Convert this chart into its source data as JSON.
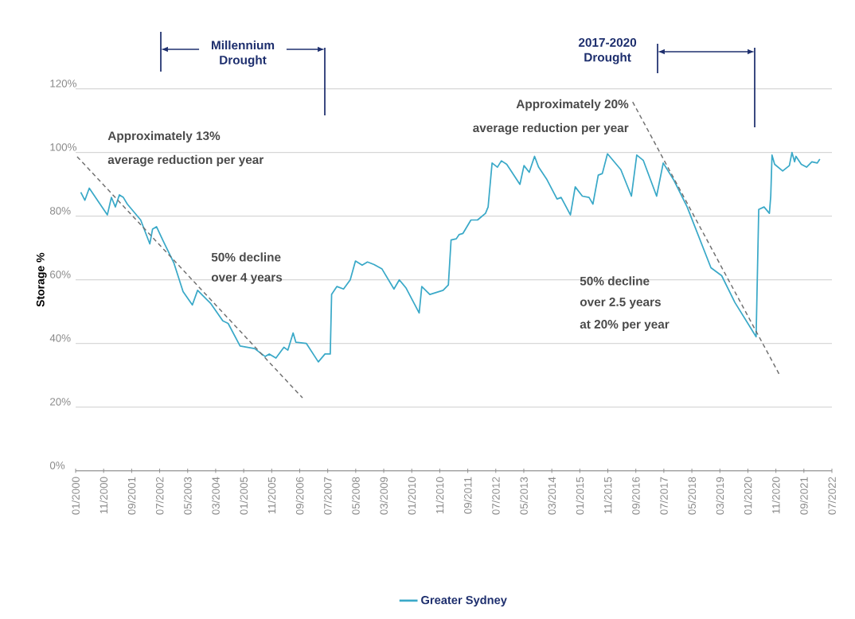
{
  "chart_data": {
    "type": "line",
    "ylabel": "Storage %",
    "xlim": [
      "2000-01",
      "2022-07"
    ],
    "xticks": [
      {
        "value": "2000-01",
        "label": "01/2000"
      },
      {
        "value": "2000-11",
        "label": "11/2000"
      },
      {
        "value": "2001-09",
        "label": "09/2001"
      },
      {
        "value": "2002-07",
        "label": "07/2002"
      },
      {
        "value": "2003-05",
        "label": "05/2003"
      },
      {
        "value": "2004-03",
        "label": "03/2004"
      },
      {
        "value": "2005-01",
        "label": "01/2005"
      },
      {
        "value": "2005-11",
        "label": "11/2005"
      },
      {
        "value": "2006-09",
        "label": "09/2006"
      },
      {
        "value": "2007-07",
        "label": "07/2007"
      },
      {
        "value": "2008-05",
        "label": "05/2008"
      },
      {
        "value": "2009-03",
        "label": "03/2009"
      },
      {
        "value": "2010-01",
        "label": "01/2010"
      },
      {
        "value": "2010-11",
        "label": "11/2010"
      },
      {
        "value": "2011-09",
        "label": "09/2011"
      },
      {
        "value": "2012-07",
        "label": "07/2012"
      },
      {
        "value": "2013-05",
        "label": "05/2013"
      },
      {
        "value": "2014-03",
        "label": "03/2014"
      },
      {
        "value": "2015-01",
        "label": "01/2015"
      },
      {
        "value": "2015-11",
        "label": "11/2015"
      },
      {
        "value": "2016-09",
        "label": "09/2016"
      },
      {
        "value": "2017-07",
        "label": "07/2017"
      },
      {
        "value": "2018-05",
        "label": "05/2018"
      },
      {
        "value": "2019-03",
        "label": "03/2019"
      },
      {
        "value": "2020-01",
        "label": "01/2020"
      },
      {
        "value": "2020-11",
        "label": "11/2020"
      },
      {
        "value": "2021-09",
        "label": "09/2021"
      },
      {
        "value": "2022-07",
        "label": "07/2022"
      }
    ],
    "ylim": [
      0,
      120
    ],
    "yticks": [
      {
        "value": 0,
        "label": "0%"
      },
      {
        "value": 20,
        "label": "20%"
      },
      {
        "value": 40,
        "label": "40%"
      },
      {
        "value": 60,
        "label": "60%"
      },
      {
        "value": 80,
        "label": "80%"
      },
      {
        "value": 100,
        "label": "100%"
      },
      {
        "value": 120,
        "label": "120%"
      }
    ],
    "grid": "y",
    "legend": "bottom",
    "marker": "none",
    "series": [
      {
        "name": "Greater Sydney",
        "color": "#3aa9c8",
        "line_style": "solid",
        "x": [
          "2000-02-27",
          "2000-04-10",
          "2000-05-28",
          "2000-12-11",
          "2001-01-25",
          "2001-03-07",
          "2001-04-20",
          "2001-06-02",
          "2001-07-15",
          "2001-12-08",
          "2002-03-16",
          "2002-04-15",
          "2002-05-28",
          "2002-08-09",
          "2002-12-02",
          "2003-03-12",
          "2003-06-22",
          "2003-08-18",
          "2004-01-10",
          "2004-05-18",
          "2004-07-15",
          "2004-11-23",
          "2005-04-29",
          "2005-08-22",
          "2005-10-05",
          "2005-12-17",
          "2006-03-12",
          "2006-04-25",
          "2006-06-21",
          "2006-07-20",
          "2006-11-13",
          "2007-03-21",
          "2007-06-02",
          "2007-07-29",
          "2007-08-13",
          "2007-10-10",
          "2007-12-21",
          "2008-03-02",
          "2008-04-29",
          "2008-07-10",
          "2008-09-07",
          "2008-11-18",
          "2009-02-13",
          "2009-06-21",
          "2009-08-18",
          "2009-10-29",
          "2010-03-21",
          "2010-04-19",
          "2010-07-15",
          "2010-12-07",
          "2011-02-03",
          "2011-03-02",
          "2011-04-29",
          "2011-05-28",
          "2011-07-10",
          "2011-10-05",
          "2011-12-16",
          "2012-03-11",
          "2012-04-09",
          "2012-05-22",
          "2012-07-19",
          "2012-09-01",
          "2012-10-29",
          "2013-03-20",
          "2013-05-03",
          "2013-06-30",
          "2013-08-27",
          "2013-10-10",
          "2014-01-05",
          "2014-04-28",
          "2014-06-11",
          "2014-09-21",
          "2014-11-12",
          "2015-01-29",
          "2015-04-10",
          "2015-05-22",
          "2015-07-19",
          "2015-09-02",
          "2015-10-28",
          "2016-03-21",
          "2016-07-14",
          "2016-09-11",
          "2016-11-22",
          "2017-04-14",
          "2017-06-25",
          "2017-10-19",
          "2018-03-11",
          "2018-11-26",
          "2019-03-21",
          "2019-08-12",
          "2020-03-30",
          "2020-04-28",
          "2020-06-25",
          "2020-08-22",
          "2020-09-06",
          "2020-09-20",
          "2020-10-18",
          "2021-01-14",
          "2021-03-26",
          "2021-04-24",
          "2021-05-22",
          "2021-06-06",
          "2021-08-03",
          "2021-09-30",
          "2021-11-27",
          "2022-01-24",
          "2022-02-22"
        ],
        "values": [
          87.5,
          85.0,
          88.8,
          80.4,
          85.9,
          82.9,
          86.7,
          85.9,
          83.8,
          78.8,
          71.3,
          75.9,
          76.7,
          72.2,
          65.4,
          56.3,
          52.1,
          56.7,
          52.5,
          47.1,
          46.3,
          39.2,
          38.4,
          35.9,
          36.7,
          35.4,
          38.8,
          37.9,
          43.3,
          40.4,
          40.0,
          34.2,
          36.7,
          36.7,
          55.4,
          57.9,
          57.1,
          60.0,
          65.9,
          64.6,
          65.6,
          64.8,
          63.4,
          57.1,
          60.0,
          57.5,
          49.6,
          57.9,
          55.4,
          56.7,
          58.4,
          72.5,
          72.9,
          74.2,
          74.6,
          78.8,
          78.8,
          80.9,
          82.9,
          96.7,
          95.4,
          97.4,
          96.3,
          90.0,
          95.9,
          93.8,
          98.8,
          95.4,
          91.7,
          85.4,
          85.9,
          80.4,
          89.2,
          86.3,
          85.9,
          83.8,
          92.9,
          93.4,
          99.6,
          94.6,
          86.3,
          99.2,
          97.5,
          86.3,
          96.7,
          91.3,
          82.9,
          63.8,
          61.3,
          52.9,
          42.1,
          82.1,
          82.9,
          80.9,
          86.3,
          99.2,
          96.3,
          94.2,
          95.9,
          100.0,
          97.1,
          98.8,
          96.3,
          95.4,
          97.1,
          96.7,
          97.9
        ]
      },
      {
        "type": "line",
        "color": "#707070",
        "line_style": "dashed",
        "x": [
          "2000-01-18",
          "2006-10-01"
        ],
        "values": [
          98.7,
          22.9
        ]
      },
      {
        "type": "line",
        "color": "#707070",
        "line_style": "dashed",
        "x": [
          "2016-07-28",
          "2020-12-15"
        ],
        "values": [
          115.9,
          29.9
        ]
      }
    ],
    "annotations": [
      "Millennium Drought",
      "2017-2020 Drought",
      "Approximately 13%",
      "average reduction per year",
      "50% decline",
      "over 4 years",
      "Approximately 20%",
      "average reduction per year",
      "50% decline",
      "over 2.5 years",
      "at 20% per year"
    ]
  }
}
